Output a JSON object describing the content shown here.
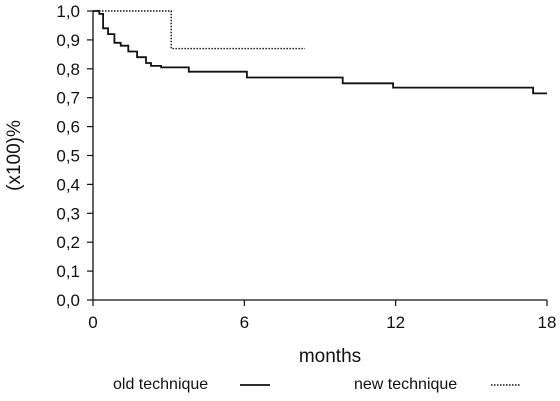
{
  "chart_data": {
    "type": "line",
    "title": "",
    "xlabel": "months",
    "ylabel": "(x100)%",
    "xlim": [
      0,
      18
    ],
    "ylim": [
      0,
      1
    ],
    "xticks": [
      0,
      6,
      12,
      18
    ],
    "xtick_labels": [
      "0",
      "6",
      "12",
      "18"
    ],
    "yticks": [
      0,
      0.1,
      0.2,
      0.3,
      0.4,
      0.5,
      0.6,
      0.7,
      0.8,
      0.9,
      1.0
    ],
    "ytick_labels": [
      "0,0",
      "0,1",
      "0,2",
      "0,3",
      "0,4",
      "0,5",
      "0,6",
      "0,7",
      "0,8",
      "0,9",
      "1,0"
    ],
    "grid": false,
    "legend_position": "bottom",
    "series": [
      {
        "name": "old technique",
        "style": "solid",
        "color": "#111111",
        "step": true,
        "x": [
          0,
          0.25,
          0.4,
          0.6,
          0.85,
          1.1,
          1.4,
          1.75,
          2.1,
          2.3,
          2.7,
          3.8,
          6.1,
          9.9,
          11.9,
          17.45,
          18
        ],
        "y": [
          1.0,
          0.99,
          0.94,
          0.92,
          0.89,
          0.88,
          0.86,
          0.84,
          0.82,
          0.81,
          0.805,
          0.79,
          0.77,
          0.75,
          0.735,
          0.715,
          0.715
        ]
      },
      {
        "name": "new technique",
        "style": "dotted",
        "color": "#111111",
        "step": true,
        "x": [
          0,
          3.1,
          8.4
        ],
        "y": [
          1.0,
          0.87,
          0.87
        ]
      }
    ]
  }
}
